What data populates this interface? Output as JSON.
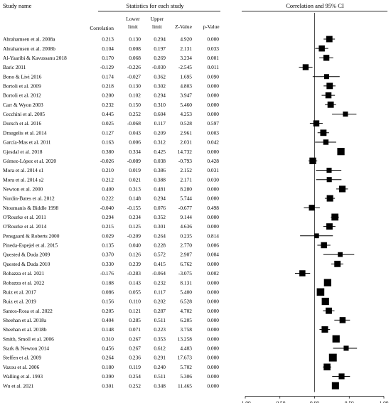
{
  "headers": {
    "study": "Study name",
    "stats_group": "Statistics for each study",
    "ci_group": "Correlation and 95% CI",
    "correlation": "Correlation",
    "lower_1": "Lower",
    "lower_2": "limit",
    "upper_1": "Upper",
    "upper_2": "limit",
    "zvalue": "Z-Value",
    "pvalue": "p-Value"
  },
  "chart_data": {
    "type": "forest",
    "xlim": [
      -1.0,
      1.0
    ],
    "xticks": [
      -1.0,
      -0.5,
      0.0,
      0.5,
      1.0
    ],
    "xtick_labels": [
      "-1.00",
      "-0.50",
      "0.00",
      "0.50",
      "1.00"
    ],
    "grid": false,
    "studies": [
      {
        "name": "Abrahamsen et al. 2008a",
        "r": "0.213",
        "lo": "0.130",
        "hi": "0.294",
        "z": "4.920",
        "p": "0.000",
        "rv": 0.213,
        "lov": 0.13,
        "hiv": 0.294,
        "w": 0.55
      },
      {
        "name": "Abrahamsen et al. 2008b",
        "r": "0.104",
        "lo": "0.008",
        "hi": "0.197",
        "z": "2.131",
        "p": "0.033",
        "rv": 0.104,
        "lov": 0.008,
        "hiv": 0.197,
        "w": 0.5
      },
      {
        "name": "Al-Yaaribi & Kavussanu 2018",
        "r": "0.170",
        "lo": "0.068",
        "hi": "0.269",
        "z": "3.234",
        "p": "0.001",
        "rv": 0.17,
        "lov": 0.068,
        "hiv": 0.269,
        "w": 0.48
      },
      {
        "name": "Baric 2011",
        "r": "-0.129",
        "lo": "-0.226",
        "hi": "-0.030",
        "z": "-2.545",
        "p": "0.011",
        "rv": -0.129,
        "lov": -0.226,
        "hiv": -0.03,
        "w": 0.48
      },
      {
        "name": "Bono & Livi 2016",
        "r": "0.174",
        "lo": "-0.027",
        "hi": "0.362",
        "z": "1.695",
        "p": "0.090",
        "rv": 0.174,
        "lov": -0.027,
        "hiv": 0.362,
        "w": 0.28
      },
      {
        "name": "Bortoli et al. 2009",
        "r": "0.218",
        "lo": "0.130",
        "hi": "0.302",
        "z": "4.803",
        "p": "0.000",
        "rv": 0.218,
        "lov": 0.13,
        "hiv": 0.302,
        "w": 0.55
      },
      {
        "name": "Bortoli et al. 2012",
        "r": "0.200",
        "lo": "0.102",
        "hi": "0.294",
        "z": "3.947",
        "p": "0.000",
        "rv": 0.2,
        "lov": 0.102,
        "hiv": 0.294,
        "w": 0.5
      },
      {
        "name": "Carr & Wyon 2003",
        "r": "0.232",
        "lo": "0.150",
        "hi": "0.310",
        "z": "5.460",
        "p": "0.000",
        "rv": 0.232,
        "lov": 0.15,
        "hiv": 0.31,
        "w": 0.55
      },
      {
        "name": "Cecchini et al. 2005",
        "r": "0.445",
        "lo": "0.252",
        "hi": "0.604",
        "z": "4.253",
        "p": "0.000",
        "rv": 0.445,
        "lov": 0.252,
        "hiv": 0.604,
        "w": 0.3
      },
      {
        "name": "Dorsch et al. 2016",
        "r": "0.025",
        "lo": "-0.068",
        "hi": "0.117",
        "z": "0.528",
        "p": "0.597",
        "rv": 0.025,
        "lov": -0.068,
        "hiv": 0.117,
        "w": 0.5
      },
      {
        "name": "Draugelis et al. 2014",
        "r": "0.127",
        "lo": "0.043",
        "hi": "0.209",
        "z": "2.961",
        "p": "0.003",
        "rv": 0.127,
        "lov": 0.043,
        "hiv": 0.209,
        "w": 0.55
      },
      {
        "name": "García-Mas et al. 2011",
        "r": "0.163",
        "lo": "0.006",
        "hi": "0.312",
        "z": "2.031",
        "p": "0.042",
        "rv": 0.163,
        "lov": 0.006,
        "hiv": 0.312,
        "w": 0.35
      },
      {
        "name": "Gjesdal et al. 2018",
        "r": "0.380",
        "lo": "0.334",
        "hi": "0.425",
        "z": "14.732",
        "p": "0.000",
        "rv": 0.38,
        "lov": 0.334,
        "hiv": 0.425,
        "w": 0.75
      },
      {
        "name": "Gómez-López et al. 2020",
        "r": "-0.026",
        "lo": "-0.089",
        "hi": "0.038",
        "z": "-0.793",
        "p": "0.428",
        "rv": -0.026,
        "lov": -0.089,
        "hiv": 0.038,
        "w": 0.62
      },
      {
        "name": "Mora et al. 2014 s1",
        "r": "0.210",
        "lo": "0.019",
        "hi": "0.386",
        "z": "2.152",
        "p": "0.031",
        "rv": 0.21,
        "lov": 0.019,
        "hiv": 0.386,
        "w": 0.3
      },
      {
        "name": "Mora et al. 2014 s2",
        "r": "0.212",
        "lo": "0.021",
        "hi": "0.388",
        "z": "2.171",
        "p": "0.030",
        "rv": 0.212,
        "lov": 0.021,
        "hiv": 0.388,
        "w": 0.3
      },
      {
        "name": "Newton et al. 2000",
        "r": "0.400",
        "lo": "0.313",
        "hi": "0.481",
        "z": "8.280",
        "p": "0.000",
        "rv": 0.4,
        "lov": 0.313,
        "hiv": 0.481,
        "w": 0.6
      },
      {
        "name": "Nordin-Bates et al. 2012",
        "r": "0.222",
        "lo": "0.148",
        "hi": "0.294",
        "z": "5.744",
        "p": "0.000",
        "rv": 0.222,
        "lov": 0.148,
        "hiv": 0.294,
        "w": 0.58
      },
      {
        "name": "Ntoumanis & Biddle 1998",
        "r": "-0.040",
        "lo": "-0.155",
        "hi": "0.076",
        "z": "-0.677",
        "p": "0.498",
        "rv": -0.04,
        "lov": -0.155,
        "hiv": 0.076,
        "w": 0.45
      },
      {
        "name": "O'Rourke et al. 2011",
        "r": "0.294",
        "lo": "0.234",
        "hi": "0.352",
        "z": "9.144",
        "p": "0.000",
        "rv": 0.294,
        "lov": 0.234,
        "hiv": 0.352,
        "w": 0.68
      },
      {
        "name": "O'Rourke et al. 2014",
        "r": "0.215",
        "lo": "0.125",
        "hi": "0.301",
        "z": "4.636",
        "p": "0.000",
        "rv": 0.215,
        "lov": 0.125,
        "hiv": 0.301,
        "w": 0.55
      },
      {
        "name": "Pensgaard & Roberts 2000",
        "r": "0.029",
        "lo": "-0.209",
        "hi": "0.264",
        "z": "0.235",
        "p": "0.814",
        "rv": 0.029,
        "lov": -0.209,
        "hiv": 0.264,
        "w": 0.25
      },
      {
        "name": "Pineda-Espejel et al. 2015",
        "r": "0.135",
        "lo": "0.040",
        "hi": "0.228",
        "z": "2.770",
        "p": "0.006",
        "rv": 0.135,
        "lov": 0.04,
        "hiv": 0.228,
        "w": 0.5
      },
      {
        "name": "Quested & Duda 2009",
        "r": "0.370",
        "lo": "0.126",
        "hi": "0.572",
        "z": "2.907",
        "p": "0.004",
        "rv": 0.37,
        "lov": 0.126,
        "hiv": 0.572,
        "w": 0.25
      },
      {
        "name": "Quested & Duda 2010",
        "r": "0.330",
        "lo": "0.239",
        "hi": "0.415",
        "z": "6.762",
        "p": "0.000",
        "rv": 0.33,
        "lov": 0.239,
        "hiv": 0.415,
        "w": 0.55
      },
      {
        "name": "Robazza et al. 2021",
        "r": "-0.176",
        "lo": "-0.283",
        "hi": "-0.064",
        "z": "-3.075",
        "p": "0.002",
        "rv": -0.176,
        "lov": -0.283,
        "hiv": -0.064,
        "w": 0.5
      },
      {
        "name": "Robazza et al. 2022",
        "r": "0.188",
        "lo": "0.143",
        "hi": "0.232",
        "z": "8.131",
        "p": "0.000",
        "rv": 0.188,
        "lov": 0.143,
        "hiv": 0.232,
        "w": 0.75
      },
      {
        "name": "Ruiz et al. 2017",
        "r": "0.086",
        "lo": "0.055",
        "hi": "0.117",
        "z": "5.400",
        "p": "0.000",
        "rv": 0.086,
        "lov": 0.055,
        "hiv": 0.117,
        "w": 0.8
      },
      {
        "name": "Ruiz et al. 2019",
        "r": "0.156",
        "lo": "0.110",
        "hi": "0.202",
        "z": "6.528",
        "p": "0.000",
        "rv": 0.156,
        "lov": 0.11,
        "hiv": 0.202,
        "w": 0.75
      },
      {
        "name": "Santos-Rosa et al. 2022",
        "r": "0.205",
        "lo": "0.121",
        "hi": "0.287",
        "z": "4.702",
        "p": "0.000",
        "rv": 0.205,
        "lov": 0.121,
        "hiv": 0.287,
        "w": 0.55
      },
      {
        "name": "Sheehan et al. 2018a",
        "r": "0.404",
        "lo": "0.285",
        "hi": "0.511",
        "z": "6.205",
        "p": "0.000",
        "rv": 0.404,
        "lov": 0.285,
        "hiv": 0.511,
        "w": 0.5
      },
      {
        "name": "Sheehan et al. 2018b",
        "r": "0.148",
        "lo": "0.071",
        "hi": "0.223",
        "z": "3.758",
        "p": "0.000",
        "rv": 0.148,
        "lov": 0.071,
        "hiv": 0.223,
        "w": 0.58
      },
      {
        "name": "Smith, Smoll et al. 2006",
        "r": "0.310",
        "lo": "0.267",
        "hi": "0.353",
        "z": "13.258",
        "p": "0.000",
        "rv": 0.31,
        "lov": 0.267,
        "hiv": 0.353,
        "w": 0.75
      },
      {
        "name": "Stark & Newton 2014",
        "r": "0.456",
        "lo": "0.267",
        "hi": "0.612",
        "z": "4.403",
        "p": "0.000",
        "rv": 0.456,
        "lov": 0.267,
        "hiv": 0.612,
        "w": 0.3
      },
      {
        "name": "Steffen et al. 2009",
        "r": "0.264",
        "lo": "0.236",
        "hi": "0.291",
        "z": "17.673",
        "p": "0.000",
        "rv": 0.264,
        "lov": 0.236,
        "hiv": 0.291,
        "w": 0.85
      },
      {
        "name": "Vazou et al. 2006",
        "r": "0.180",
        "lo": "0.119",
        "hi": "0.240",
        "z": "5.702",
        "p": "0.000",
        "rv": 0.18,
        "lov": 0.119,
        "hiv": 0.24,
        "w": 0.65
      },
      {
        "name": "Walling et al. 1993",
        "r": "0.390",
        "lo": "0.254",
        "hi": "0.511",
        "z": "5.306",
        "p": "0.000",
        "rv": 0.39,
        "lov": 0.254,
        "hiv": 0.511,
        "w": 0.45
      },
      {
        "name": "Wu et al. 2021",
        "r": "0.301",
        "lo": "0.252",
        "hi": "0.348",
        "z": "11.465",
        "p": "0.000",
        "rv": 0.301,
        "lov": 0.252,
        "hiv": 0.348,
        "w": 0.72
      }
    ]
  }
}
